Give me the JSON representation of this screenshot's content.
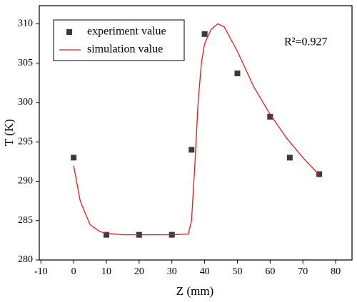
{
  "chart_data": {
    "type": "scatter",
    "xlabel": "Z (mm)",
    "ylabel": "T (K)",
    "annotation": "R²=0.927",
    "xlim": [
      -10.5,
      85
    ],
    "xticks": [
      -10,
      0,
      10,
      20,
      30,
      40,
      50,
      60,
      70,
      80
    ],
    "ylim": [
      280,
      312.3
    ],
    "yticks": [
      280,
      285,
      290,
      295,
      300,
      305,
      310
    ],
    "series": [
      {
        "name": "experiment value",
        "type": "scatter",
        "color": "#3a3a3a",
        "x": [
          0,
          10,
          20,
          30,
          36,
          40,
          50,
          60,
          66,
          75
        ],
        "y": [
          293,
          283.2,
          283.2,
          283.2,
          294,
          308.7,
          303.7,
          298.2,
          293,
          290.9
        ]
      },
      {
        "name": "simulation value",
        "type": "line",
        "color": "#e8191a",
        "x": [
          0,
          2,
          5,
          8,
          10,
          15,
          20,
          30,
          35,
          36,
          37,
          38,
          39,
          40,
          42,
          44,
          46,
          50,
          55,
          60,
          65,
          70,
          75
        ],
        "y": [
          292,
          287.5,
          284.5,
          283.6,
          283.4,
          283.2,
          283.2,
          283.2,
          283.3,
          285,
          292,
          300,
          305,
          307.5,
          309.3,
          310,
          309.6,
          306.5,
          302,
          298.5,
          295.5,
          293,
          290.8
        ]
      }
    ]
  }
}
